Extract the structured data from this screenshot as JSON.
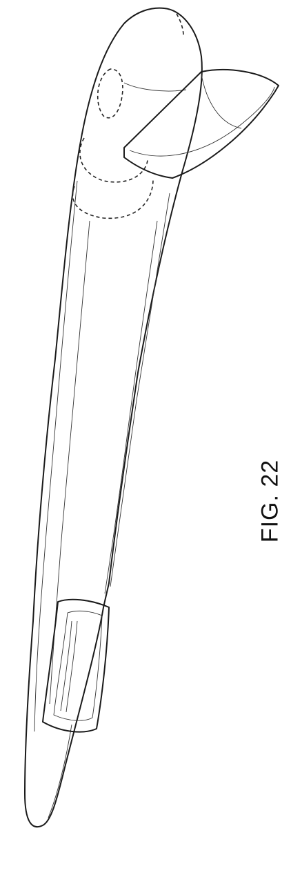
{
  "figure": {
    "label": "FIG. 22"
  }
}
